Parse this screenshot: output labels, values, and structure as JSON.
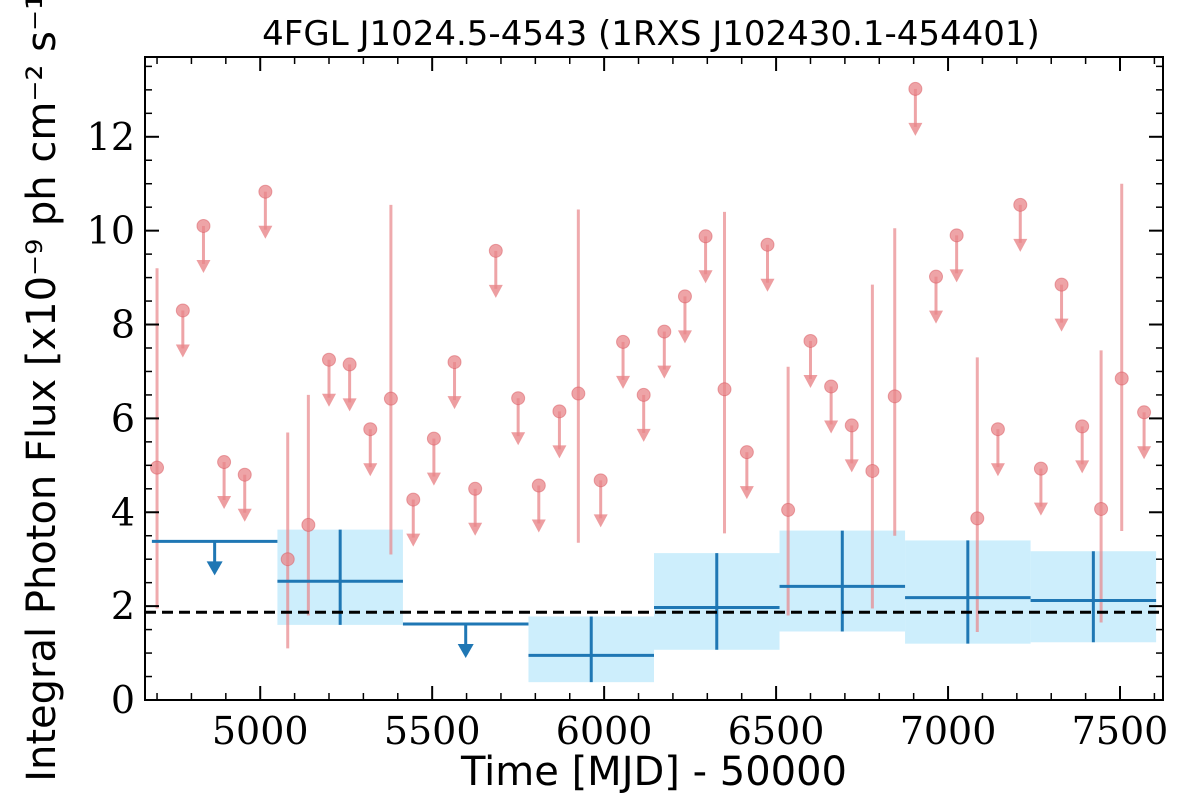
{
  "chart_data": {
    "type": "scatter",
    "title": "4FGL J1024.5-4543 (1RXS J102430.1-454401)",
    "xlabel": "Time [MJD] - 50000",
    "ylabel": "Integral Photon Flux [x10⁻⁹ ph cm⁻² s⁻¹]",
    "xlim": [
      4665,
      7625
    ],
    "ylim": [
      0,
      13.7
    ],
    "x_ticks": [
      5000,
      5500,
      6000,
      6500,
      7000,
      7500
    ],
    "x_tick_labels": [
      "5000",
      "5500",
      "6000",
      "6500",
      "7000",
      "7500"
    ],
    "y_ticks": [
      0,
      2,
      4,
      6,
      8,
      10,
      12
    ],
    "y_tick_labels": [
      "0",
      "2",
      "4",
      "6",
      "8",
      "10",
      "12"
    ],
    "average_flux": 1.87,
    "colors": {
      "short_bin": "#e8868a",
      "long_bin": "#1f77b4",
      "band": "#cdeefc",
      "average_line": "#000000"
    },
    "series": [
      {
        "kind": "short_bins_detections",
        "points": [
          {
            "x": 4700,
            "y": 4.95,
            "lo": 1.95,
            "hi": 9.2
          },
          {
            "x": 5080,
            "y": 3.0,
            "lo": 1.1,
            "hi": 5.7
          },
          {
            "x": 5140,
            "y": 3.73,
            "lo": 1.8,
            "hi": 6.5
          },
          {
            "x": 5380,
            "y": 6.42,
            "lo": 3.1,
            "hi": 10.55
          },
          {
            "x": 5925,
            "y": 6.53,
            "lo": 3.35,
            "hi": 10.45
          },
          {
            "x": 6350,
            "y": 6.62,
            "lo": 3.55,
            "hi": 10.4
          },
          {
            "x": 6535,
            "y": 4.05,
            "lo": 1.8,
            "hi": 7.1
          },
          {
            "x": 6780,
            "y": 4.88,
            "lo": 1.95,
            "hi": 8.85
          },
          {
            "x": 6845,
            "y": 6.47,
            "lo": 3.5,
            "hi": 10.05
          },
          {
            "x": 7085,
            "y": 3.87,
            "lo": 1.45,
            "hi": 7.3
          },
          {
            "x": 7445,
            "y": 4.07,
            "lo": 1.65,
            "hi": 7.45
          },
          {
            "x": 7505,
            "y": 6.85,
            "lo": 3.6,
            "hi": 11.0
          }
        ]
      },
      {
        "kind": "short_bins_upper_limits",
        "points": [
          {
            "x": 4775,
            "y": 8.3
          },
          {
            "x": 4835,
            "y": 10.1
          },
          {
            "x": 4895,
            "y": 5.07
          },
          {
            "x": 4955,
            "y": 4.8
          },
          {
            "x": 5015,
            "y": 10.83
          },
          {
            "x": 5200,
            "y": 7.25
          },
          {
            "x": 5260,
            "y": 7.15
          },
          {
            "x": 5320,
            "y": 5.77
          },
          {
            "x": 5445,
            "y": 4.27
          },
          {
            "x": 5505,
            "y": 5.57
          },
          {
            "x": 5565,
            "y": 7.2
          },
          {
            "x": 5625,
            "y": 4.5
          },
          {
            "x": 5685,
            "y": 9.57
          },
          {
            "x": 5750,
            "y": 6.43
          },
          {
            "x": 5810,
            "y": 4.57
          },
          {
            "x": 5870,
            "y": 6.15
          },
          {
            "x": 5990,
            "y": 4.68
          },
          {
            "x": 6055,
            "y": 7.63
          },
          {
            "x": 6115,
            "y": 6.5
          },
          {
            "x": 6175,
            "y": 7.85
          },
          {
            "x": 6235,
            "y": 8.6
          },
          {
            "x": 6295,
            "y": 9.88
          },
          {
            "x": 6415,
            "y": 5.28
          },
          {
            "x": 6475,
            "y": 9.7
          },
          {
            "x": 6600,
            "y": 7.65
          },
          {
            "x": 6660,
            "y": 6.68
          },
          {
            "x": 6720,
            "y": 5.85
          },
          {
            "x": 6905,
            "y": 13.02
          },
          {
            "x": 6965,
            "y": 9.02
          },
          {
            "x": 7025,
            "y": 9.9
          },
          {
            "x": 7145,
            "y": 5.77
          },
          {
            "x": 7210,
            "y": 10.55
          },
          {
            "x": 7270,
            "y": 4.93
          },
          {
            "x": 7330,
            "y": 8.85
          },
          {
            "x": 7390,
            "y": 5.83
          },
          {
            "x": 7570,
            "y": 6.13
          }
        ]
      },
      {
        "kind": "long_bins_detections",
        "bins": [
          {
            "x0": 5050,
            "x1": 5415,
            "y": 2.53,
            "lo": 1.6,
            "hi": 3.63
          },
          {
            "x0": 5780,
            "x1": 6145,
            "y": 0.95,
            "lo": 0.38,
            "hi": 1.78
          },
          {
            "x0": 6145,
            "x1": 6510,
            "y": 1.97,
            "lo": 1.07,
            "hi": 3.13
          },
          {
            "x0": 6510,
            "x1": 6875,
            "y": 2.42,
            "lo": 1.46,
            "hi": 3.61
          },
          {
            "x0": 6875,
            "x1": 7240,
            "y": 2.18,
            "lo": 1.2,
            "hi": 3.4
          },
          {
            "x0": 7240,
            "x1": 7605,
            "y": 2.12,
            "lo": 1.23,
            "hi": 3.17
          }
        ]
      },
      {
        "kind": "long_bins_upper_limits",
        "bins": [
          {
            "x0": 4685,
            "x1": 5050,
            "y": 3.38
          },
          {
            "x0": 5415,
            "x1": 5780,
            "y": 1.62
          }
        ]
      }
    ]
  }
}
